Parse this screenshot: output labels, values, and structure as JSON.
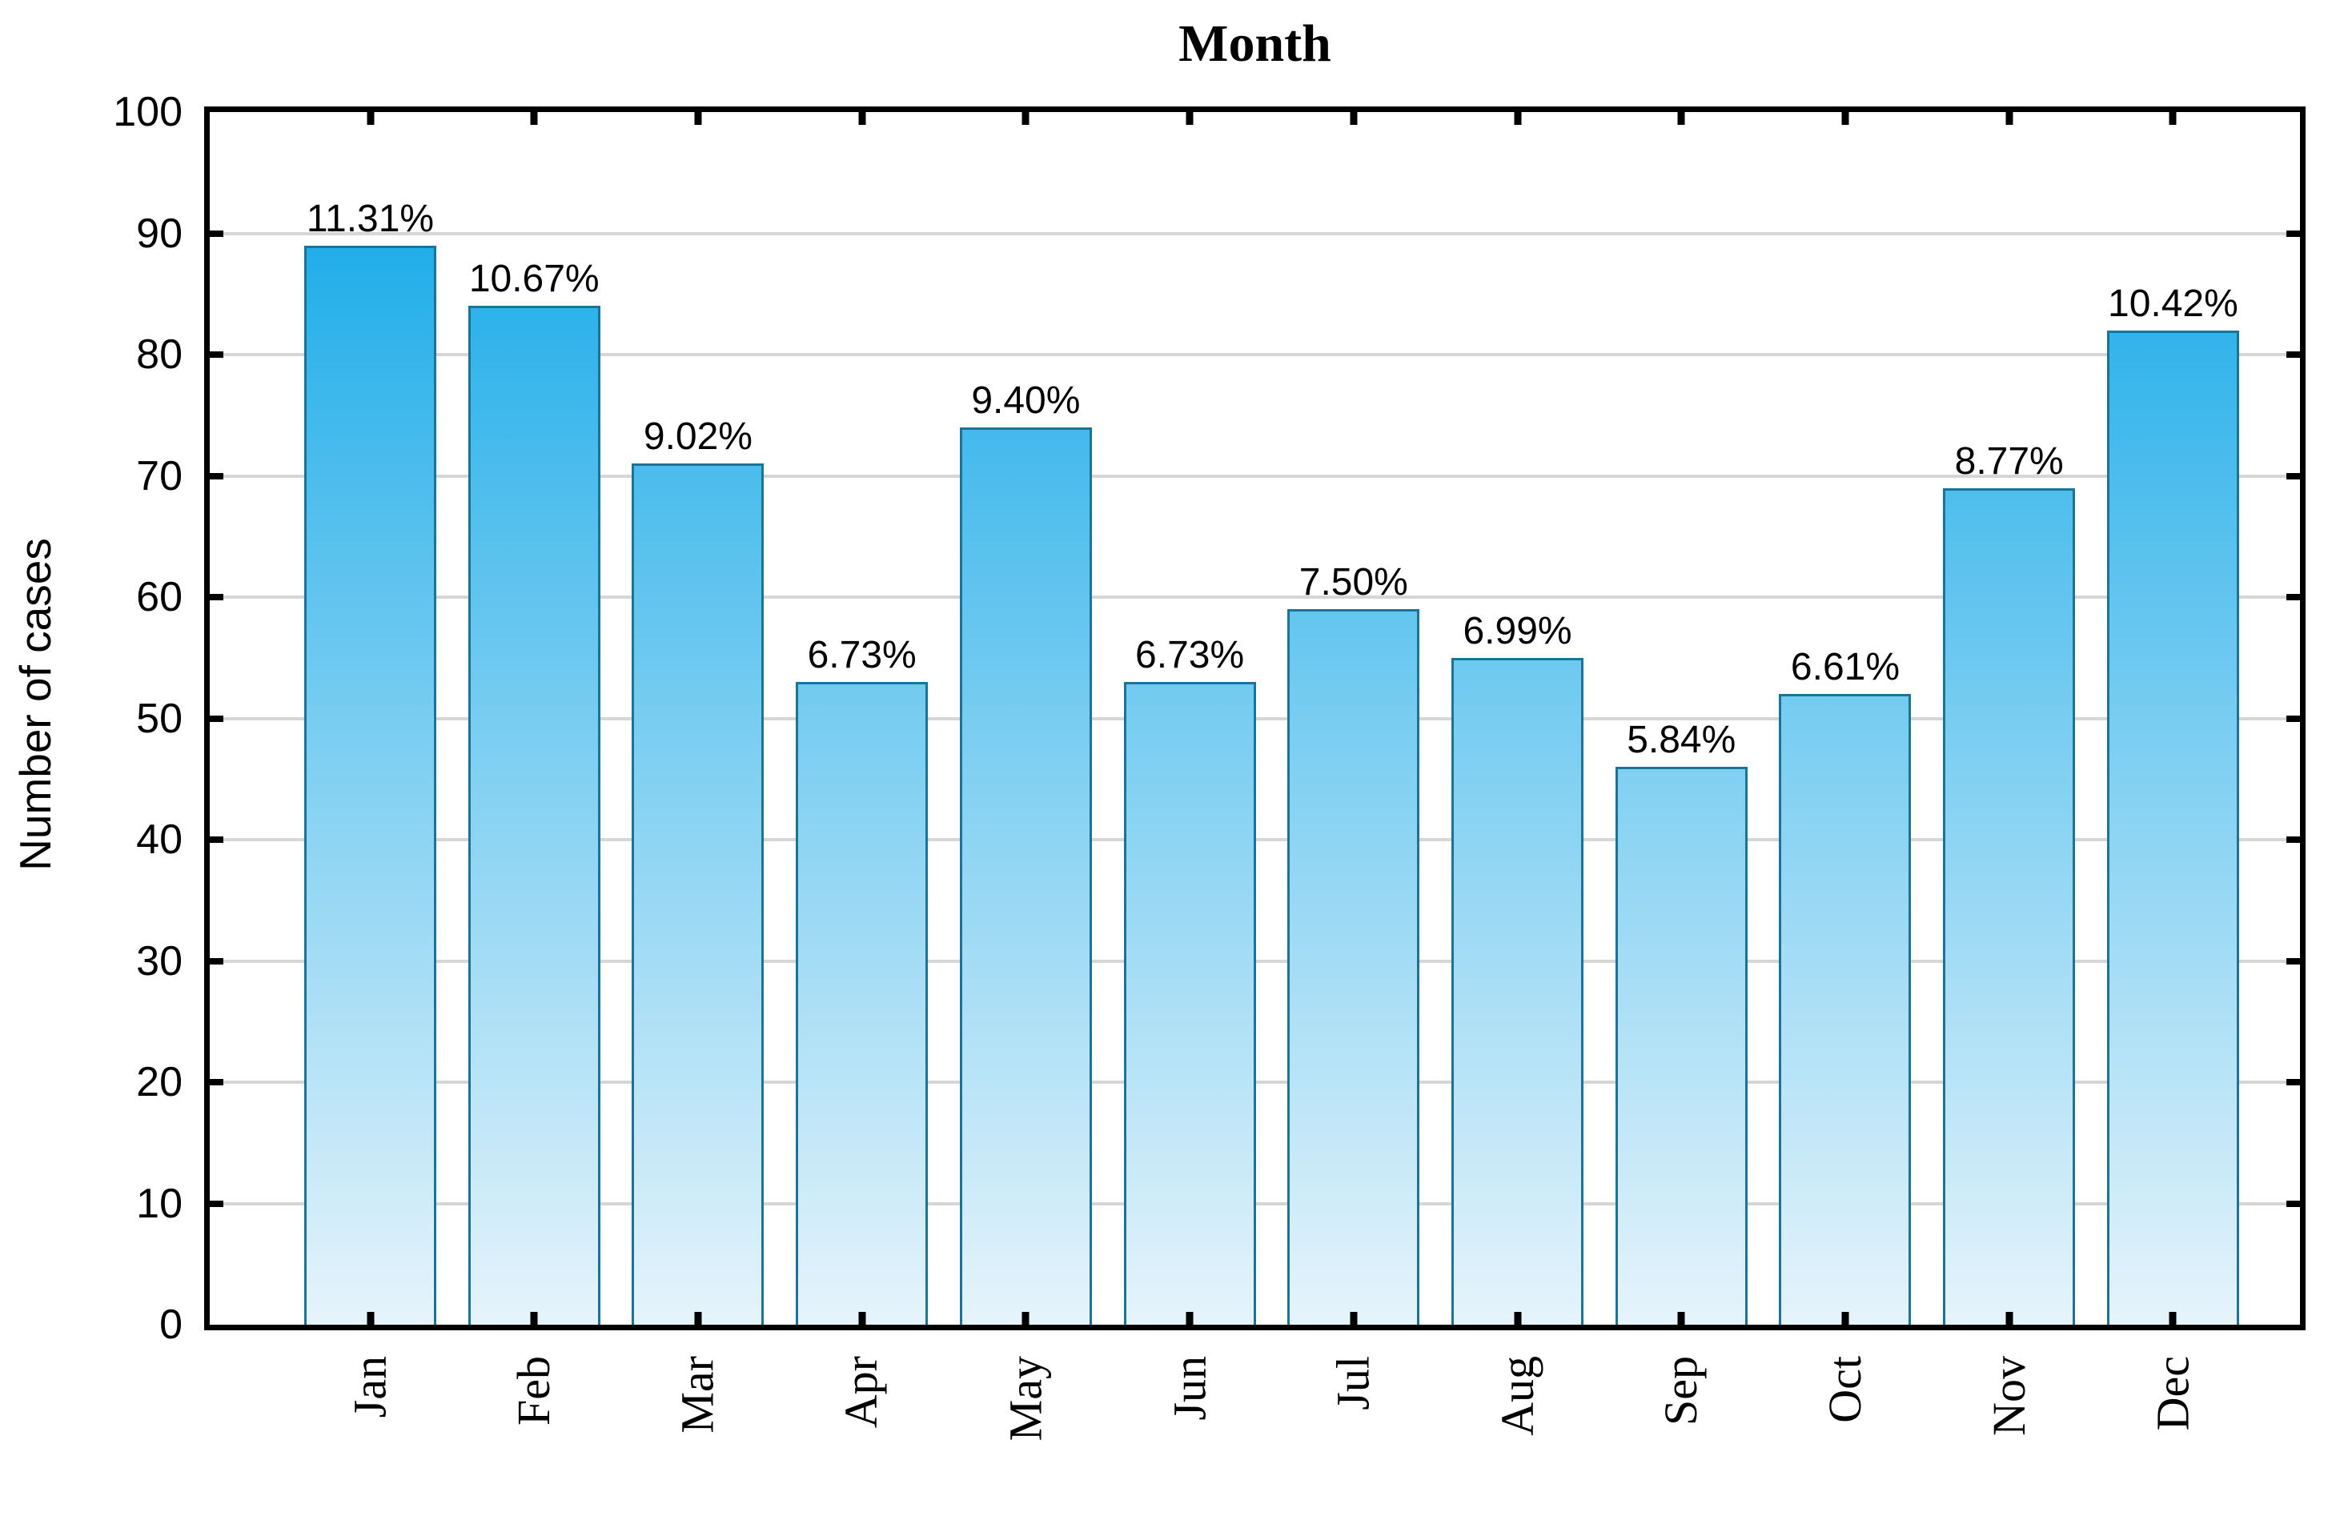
{
  "chart_data": {
    "type": "bar",
    "title": "Month",
    "xlabel": "",
    "ylabel": "Number of cases",
    "categories": [
      "Jan",
      "Feb",
      "Mar",
      "Apr",
      "May",
      "Jun",
      "Jul",
      "Aug",
      "Sep",
      "Oct",
      "Nov",
      "Dec"
    ],
    "values": [
      89,
      84,
      71,
      53,
      74,
      53,
      59,
      55,
      46,
      52,
      69,
      82
    ],
    "bar_labels": [
      "11.31%",
      "10.67%",
      "9.02%",
      "6.73%",
      "9.40%",
      "6.73%",
      "7.50%",
      "6.99%",
      "5.84%",
      "6.61%",
      "8.77%",
      "10.42%"
    ],
    "ylim": [
      0,
      100
    ],
    "y_ticks": [
      0,
      10,
      20,
      30,
      40,
      50,
      60,
      70,
      80,
      90,
      100
    ],
    "grid": "horizontal",
    "legend": "none"
  },
  "colors": {
    "background": "#ffffff",
    "axis": "#000000",
    "text": "#000000",
    "gridline": "#d6d6d6",
    "bar_border": "#1b7398",
    "bar_gradient_top": "#1fade9",
    "bar_gradient_bottom": "#e6f4fb"
  }
}
